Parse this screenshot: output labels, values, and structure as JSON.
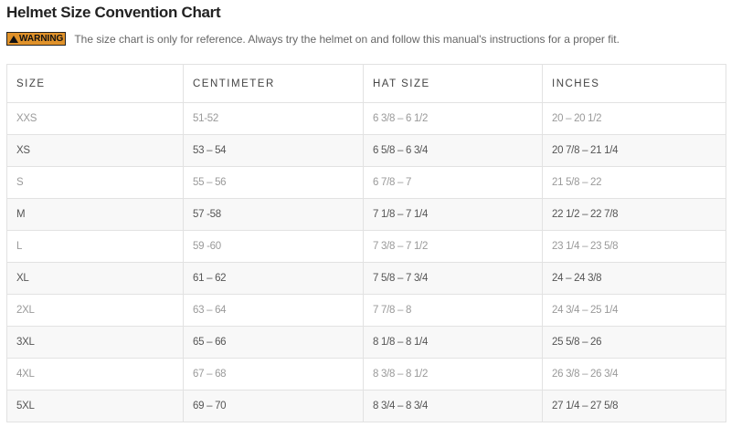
{
  "title": "Helmet Size Convention Chart",
  "warning": {
    "badge": "WARNING",
    "icon": "warning-triangle-icon",
    "color": "#e0922a",
    "text": "The size chart is only for reference. Always try the helmet on and follow this manual's instructions for a proper fit."
  },
  "table": {
    "headers": [
      "SIZE",
      "CENTIMETER",
      "HAT SIZE",
      "INCHES"
    ],
    "rows": [
      [
        "XXS",
        "51-52",
        "6 3/8 – 6 1/2",
        "20 – 20 1/2"
      ],
      [
        "XS",
        "53 – 54",
        "6 5/8 – 6 3/4",
        "20 7/8 – 21 1/4"
      ],
      [
        "S",
        "55 – 56",
        "6 7/8 – 7",
        "21 5/8 – 22"
      ],
      [
        "M",
        "57 -58",
        "7 1/8 – 7 1/4",
        "22 1/2 – 22 7/8"
      ],
      [
        "L",
        "59 -60",
        "7 3/8 – 7 1/2",
        "23 1/4 – 23 5/8"
      ],
      [
        "XL",
        "61 – 62",
        "7 5/8 – 7 3/4",
        "24 – 24 3/8"
      ],
      [
        "2XL",
        "63 – 64",
        "7 7/8 – 8",
        "24 3/4 – 25 1/4"
      ],
      [
        "3XL",
        "65 – 66",
        "8 1/8 – 8 1/4",
        "25 5/8 – 26"
      ],
      [
        "4XL",
        "67 – 68",
        "8 3/8 – 8 1/2",
        "26 3/8 – 26 3/4"
      ],
      [
        "5XL",
        "69 – 70",
        "8 3/4 – 8 3/4",
        "27 1/4 – 27 5/8"
      ]
    ]
  }
}
